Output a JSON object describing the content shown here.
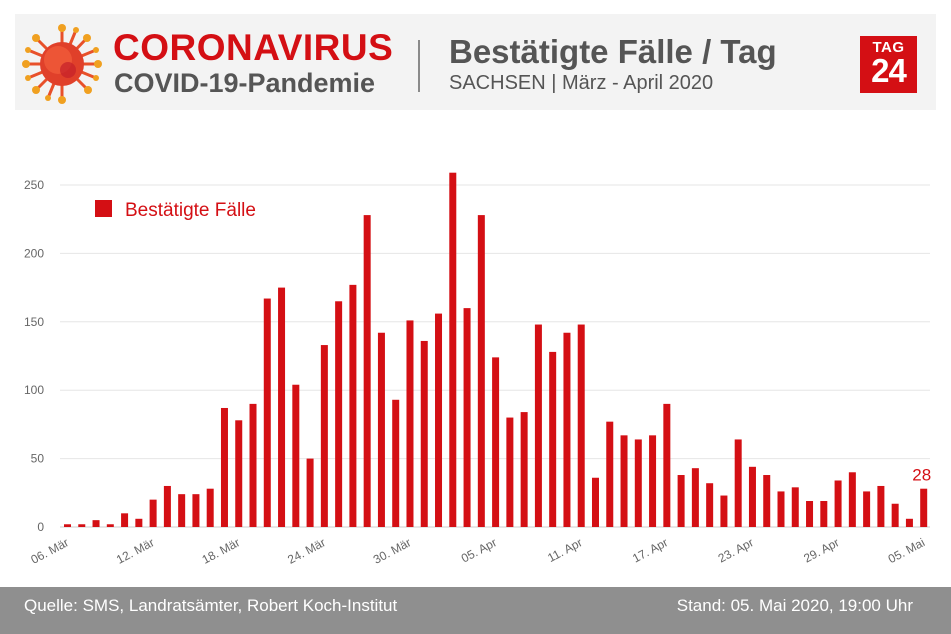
{
  "header": {
    "title": "CORONAVIRUS",
    "title_sub": "COVID-19-Pandemie",
    "subtitle": "Bestätigte Fälle / Tag",
    "subtitle_sub": "SACHSEN | März - April 2020",
    "logo_top": "TAG",
    "logo_bottom": "24"
  },
  "footer": {
    "source": "Quelle: SMS, Landratsämter, Robert Koch-Institut",
    "stand": "Stand: 05. Mai 2020, 19:00 Uhr"
  },
  "colors": {
    "accent": "#d40f14",
    "text_gray": "#555555",
    "footer_bg": "#8f8f8f"
  },
  "icons": [
    "virus-icon",
    "tag24-logo"
  ],
  "chart_data": {
    "type": "bar",
    "legend": [
      "Bestätigte Fälle"
    ],
    "legend_position": "top-left",
    "grid": true,
    "ylim": [
      0,
      250
    ],
    "yticks": [
      "0",
      "50",
      "100",
      "150",
      "200",
      "250"
    ],
    "xtick_labels": [
      "06. Mär",
      "12. Mär",
      "18. Mär",
      "24. Mär",
      "30. Mär",
      "05. Apr",
      "11. Apr",
      "17. Apr",
      "23. Apr",
      "29. Apr",
      "05. Mai"
    ],
    "annotation": "28",
    "series": [
      {
        "name": "Bestätigte Fälle",
        "values": [
          2,
          2,
          5,
          2,
          10,
          6,
          20,
          30,
          24,
          24,
          28,
          87,
          78,
          90,
          167,
          175,
          104,
          50,
          133,
          165,
          177,
          228,
          142,
          93,
          151,
          136,
          156,
          259,
          160,
          228,
          124,
          80,
          84,
          148,
          128,
          142,
          148,
          36,
          77,
          67,
          64,
          67,
          90,
          38,
          43,
          32,
          23,
          64,
          44,
          38,
          26,
          29,
          19,
          19,
          34,
          40,
          26,
          30,
          17,
          6,
          28
        ]
      }
    ]
  }
}
